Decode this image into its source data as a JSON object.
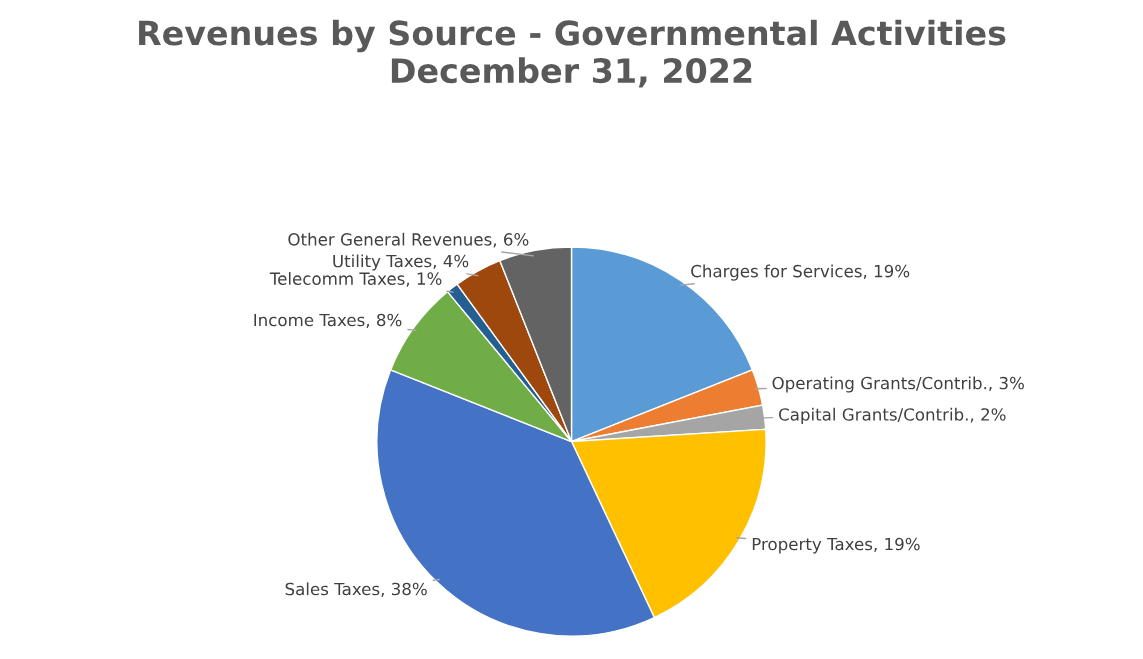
{
  "chart_data": {
    "type": "pie",
    "title": "Revenues by Source - Governmental Activities",
    "subtitle": "December 31, 2022",
    "categories": [
      "Charges for Services",
      "Operating Grants/Contrib.",
      "Capital Grants/Contrib.",
      "Property Taxes",
      "Sales Taxes",
      "Income Taxes",
      "Telecomm Taxes",
      "Utility Taxes",
      "Other General Revenues"
    ],
    "values": [
      19,
      3,
      2,
      19,
      38,
      8,
      1,
      4,
      6
    ],
    "value_labels": [
      "19%",
      "3%",
      "2%",
      "19%",
      "38%",
      "8%",
      "1%",
      "4%",
      "6%"
    ],
    "colors": [
      "#5b9bd5",
      "#ed7d31",
      "#a5a5a5",
      "#ffc000",
      "#4472c4",
      "#70ad47",
      "#255e91",
      "#9e480e",
      "#636363"
    ],
    "legend": false
  }
}
